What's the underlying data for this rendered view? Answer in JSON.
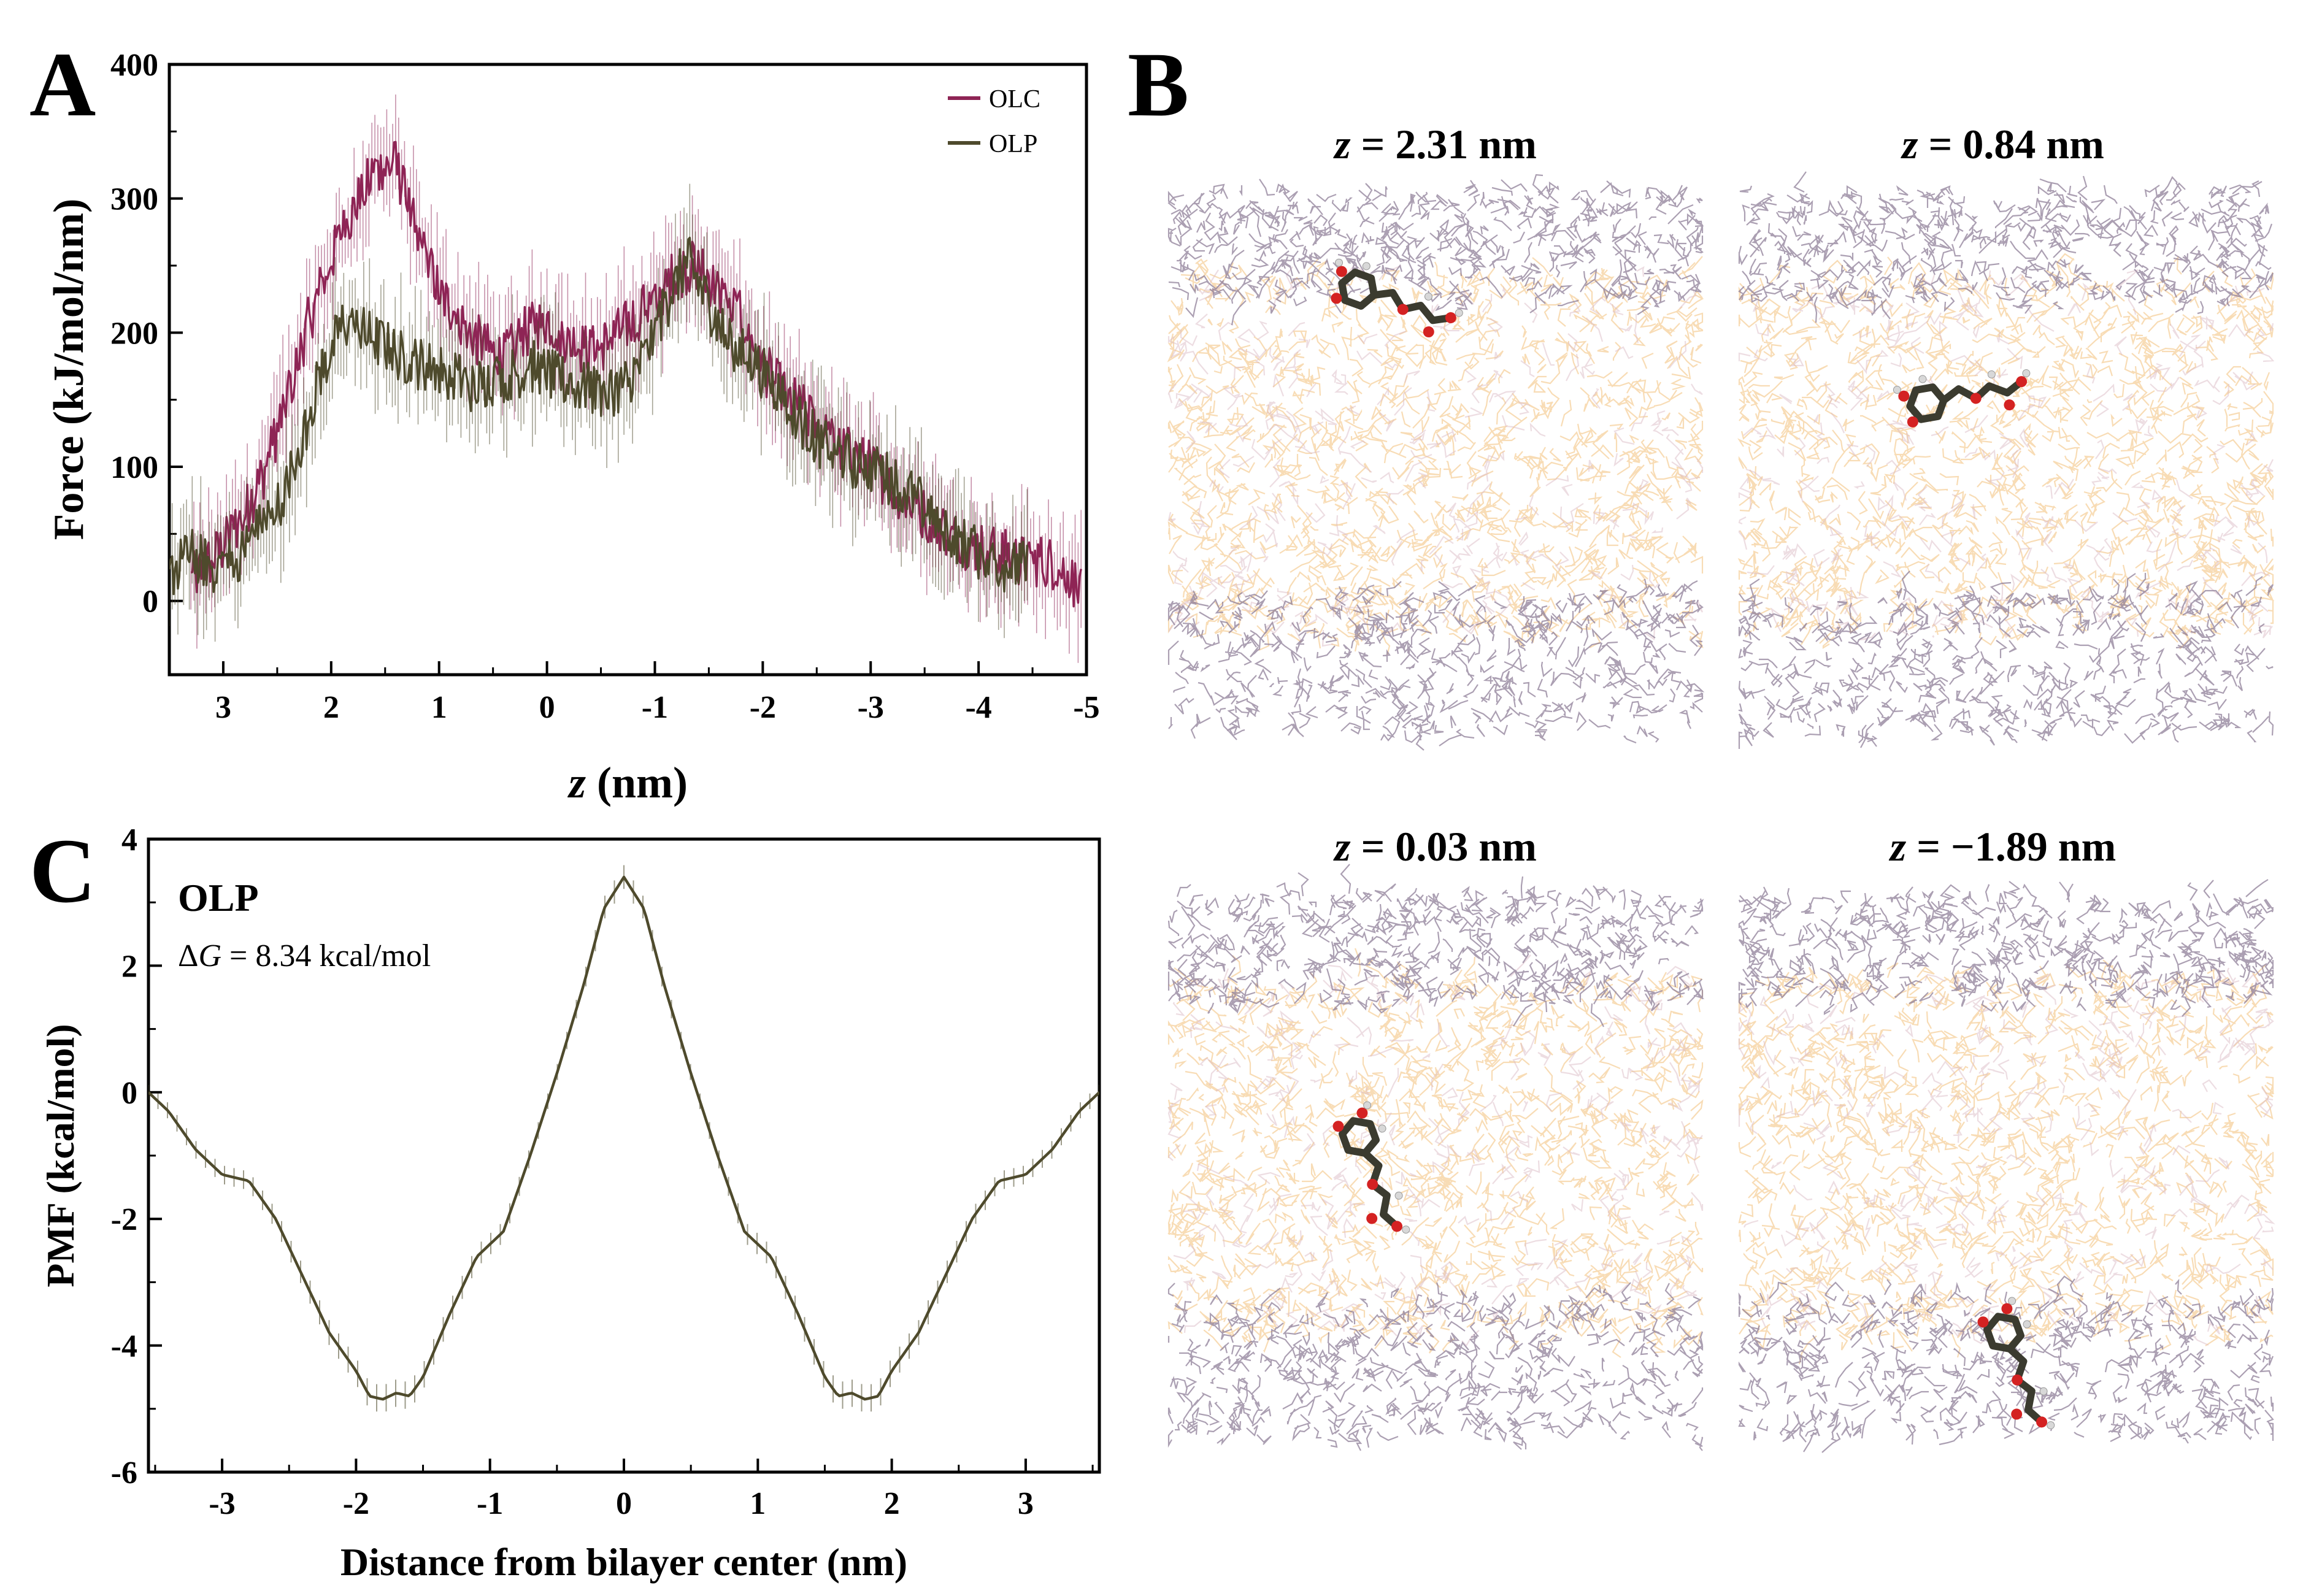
{
  "figure": {
    "panel_letters": [
      "A",
      "B",
      "C"
    ]
  },
  "colors": {
    "olc": "#8e2455",
    "olp": "#4e4a2c",
    "lipid_head": "#8f7f98",
    "lipid_tail": "#f2c078",
    "lipid_tail_alt": "#dcbcc6",
    "carbon": "#3b3b2f",
    "oxygen": "#d42222",
    "hydrogen": "#d8d8d8"
  },
  "chart_data": [
    {
      "panel": "A",
      "type": "line",
      "title": "",
      "xlabel_italic": "z",
      "xlabel_rest": " (nm)",
      "ylabel": "Force (kJ/mol/nm)",
      "xlim": [
        3.5,
        -5.0
      ],
      "ylim": [
        -55,
        400
      ],
      "xticks": [
        3,
        2,
        1,
        0,
        -1,
        -2,
        -3,
        -4,
        -5
      ],
      "xtick_labels": [
        "3",
        "2",
        "1",
        "0",
        "-1",
        "-2",
        "-3",
        "-4",
        "-5"
      ],
      "yticks": [
        0,
        100,
        200,
        300,
        400
      ],
      "ytick_labels": [
        "0",
        "100",
        "200",
        "300",
        "400"
      ],
      "legend_position": "top-right",
      "series": [
        {
          "name": "OLC",
          "color_key": "olc",
          "x": [
            3.3,
            3.0,
            2.8,
            2.6,
            2.4,
            2.2,
            2.0,
            1.8,
            1.6,
            1.4,
            1.2,
            1.0,
            0.8,
            0.6,
            0.4,
            0.2,
            0.0,
            -0.2,
            -0.4,
            -0.6,
            -0.8,
            -1.0,
            -1.2,
            -1.4,
            -1.6,
            -1.8,
            -2.0,
            -2.2,
            -2.4,
            -2.6,
            -2.8,
            -3.0,
            -3.2,
            -3.4,
            -3.6,
            -3.8,
            -4.0,
            -4.2,
            -4.4,
            -4.6,
            -4.8,
            -4.95
          ],
          "y": [
            15,
            40,
            65,
            100,
            155,
            210,
            255,
            290,
            320,
            325,
            270,
            230,
            210,
            190,
            180,
            200,
            210,
            195,
            185,
            195,
            210,
            225,
            245,
            250,
            230,
            210,
            175,
            155,
            140,
            120,
            110,
            100,
            85,
            70,
            60,
            45,
            40,
            35,
            30,
            30,
            25,
            5
          ]
        },
        {
          "name": "OLP",
          "color_key": "olp",
          "x": [
            3.5,
            3.3,
            3.1,
            2.9,
            2.7,
            2.5,
            2.3,
            2.1,
            1.9,
            1.7,
            1.5,
            1.3,
            1.1,
            0.9,
            0.7,
            0.5,
            0.3,
            0.1,
            -0.1,
            -0.3,
            -0.5,
            -0.7,
            -0.9,
            -1.1,
            -1.3,
            -1.5,
            -1.7,
            -1.9,
            -2.1,
            -2.3,
            -2.5,
            -2.7,
            -2.9,
            -3.1,
            -3.3,
            -3.5,
            -3.7,
            -3.9,
            -4.1,
            -4.3,
            -4.45
          ],
          "y": [
            20,
            35,
            25,
            30,
            50,
            70,
            110,
            170,
            205,
            200,
            190,
            180,
            175,
            170,
            160,
            165,
            170,
            175,
            165,
            160,
            155,
            160,
            180,
            220,
            255,
            220,
            190,
            180,
            160,
            140,
            120,
            110,
            100,
            95,
            85,
            70,
            55,
            40,
            30,
            25,
            25
          ]
        }
      ]
    },
    {
      "panel": "C",
      "type": "line",
      "xlabel": "Distance from bilayer center (nm)",
      "ylabel": "PMF (kcal/mol)",
      "xlim": [
        -3.55,
        3.55
      ],
      "ylim": [
        -6,
        4
      ],
      "xticks": [
        -3,
        -2,
        -1,
        0,
        1,
        2,
        3
      ],
      "xtick_labels": [
        "-3",
        "-2",
        "-1",
        "0",
        "1",
        "2",
        "3"
      ],
      "yticks": [
        -6,
        -4,
        -2,
        0,
        2,
        4
      ],
      "ytick_labels": [
        "-6",
        "-4",
        "-2",
        "0",
        "2",
        "4"
      ],
      "annotation_name": "OLP",
      "annotation_dg_symbol": "Δ",
      "annotation_dg_var": "G",
      "annotation_dg_value": " = 8.34 kcal/mol",
      "series": [
        {
          "name": "OLP",
          "color_key": "olp",
          "x": [
            -3.55,
            -3.4,
            -3.2,
            -3.0,
            -2.8,
            -2.6,
            -2.4,
            -2.2,
            -2.0,
            -1.9,
            -1.8,
            -1.7,
            -1.6,
            -1.5,
            -1.3,
            -1.1,
            -0.9,
            -0.7,
            -0.5,
            -0.3,
            -0.15,
            0.0,
            0.15,
            0.3,
            0.5,
            0.7,
            0.9,
            1.1,
            1.3,
            1.5,
            1.6,
            1.7,
            1.8,
            1.9,
            2.0,
            2.2,
            2.4,
            2.6,
            2.8,
            3.0,
            3.2,
            3.4,
            3.55
          ],
          "y": [
            0.0,
            -0.3,
            -0.9,
            -1.3,
            -1.4,
            -2.0,
            -2.9,
            -3.8,
            -4.4,
            -4.8,
            -4.85,
            -4.75,
            -4.8,
            -4.5,
            -3.5,
            -2.6,
            -2.2,
            -1.0,
            0.3,
            1.7,
            2.9,
            3.4,
            2.9,
            1.7,
            0.3,
            -1.0,
            -2.2,
            -2.6,
            -3.5,
            -4.5,
            -4.8,
            -4.75,
            -4.85,
            -4.8,
            -4.4,
            -3.8,
            -2.9,
            -2.0,
            -1.4,
            -1.3,
            -0.9,
            -0.3,
            0.0
          ]
        }
      ]
    }
  ],
  "snapshots": [
    {
      "z_var": "z",
      "z_value": " = 2.31 nm",
      "molecule_position": "upper headgroup region",
      "center_z": 0.2
    },
    {
      "z_var": "z",
      "z_value": " = 0.84 nm",
      "molecule_position": "upper acyl chain region",
      "center_z": 0.37
    },
    {
      "z_var": "z",
      "z_value": " = 0.03 nm",
      "molecule_position": "bilayer center",
      "center_z": 0.5
    },
    {
      "z_var": "z",
      "z_value": " = −1.89 nm",
      "molecule_position": "lower headgroup region",
      "center_z": 0.85
    }
  ]
}
